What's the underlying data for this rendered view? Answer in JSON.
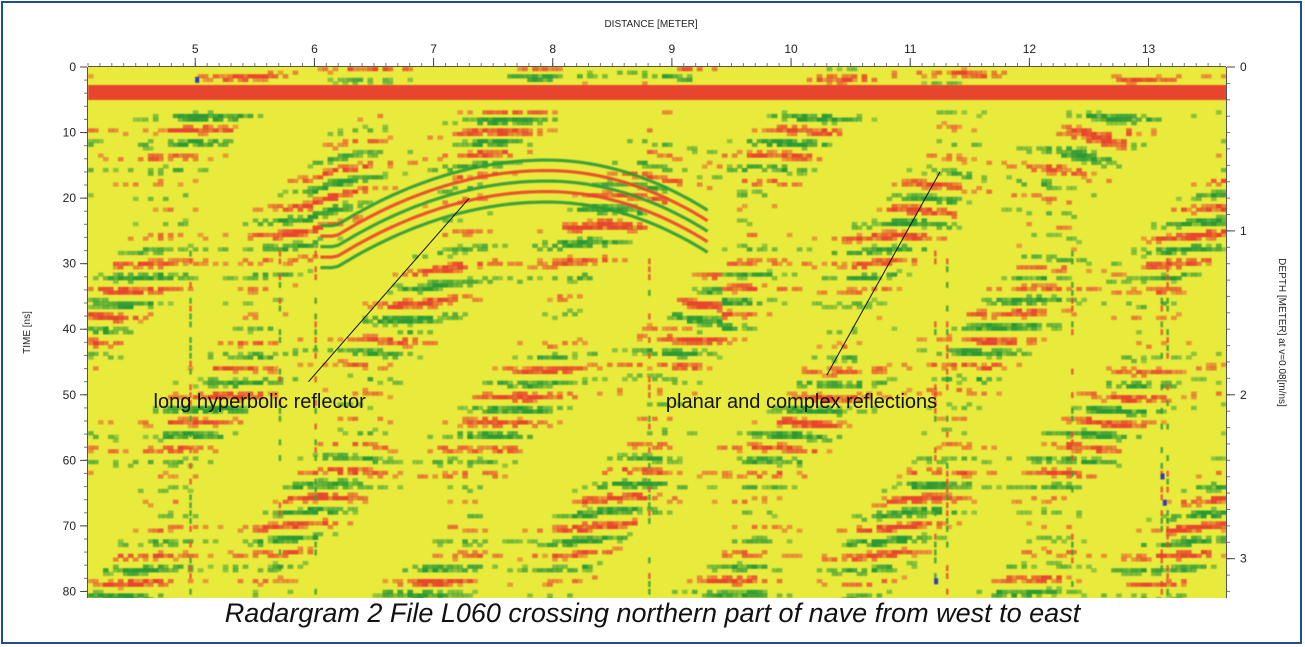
{
  "caption": "Radargram 2 File L060 crossing northern part of nave from west to east",
  "chart_data": {
    "type": "heatmap",
    "subject": "GPR radargram",
    "x_axis": {
      "label": "DISTANCE [METER]",
      "position": "top",
      "range": [
        4.1,
        13.65
      ],
      "ticks": [
        5,
        6,
        7,
        8,
        9,
        10,
        11,
        12,
        13
      ]
    },
    "y_axis_left": {
      "label": "TIME [ns]",
      "range": [
        0,
        81
      ],
      "reversed": true,
      "ticks": [
        0,
        10,
        20,
        30,
        40,
        50,
        60,
        70,
        80
      ]
    },
    "y_axis_right": {
      "label": "DEPTH [METER] at v=0.08[m/ns]",
      "range": [
        0,
        3.24
      ],
      "ticks": [
        0,
        1,
        2,
        3
      ]
    },
    "colormap": {
      "background": "#e8ea3c",
      "positive": "#e8442e",
      "negative": "#2c9a36",
      "extreme": "#2b3fb8"
    },
    "grid": false,
    "annotations": [
      {
        "text": "long hyperbolic reflector",
        "label_x": 4.65,
        "label_t": 52,
        "pointer_from": [
          5.95,
          48
        ],
        "pointer_to": [
          7.3,
          20
        ]
      },
      {
        "text": "planar and complex reflections",
        "label_x": 8.95,
        "label_t": 52,
        "pointer_from": [
          10.3,
          47
        ],
        "pointer_to": [
          11.25,
          16
        ]
      }
    ],
    "features": [
      {
        "name": "direct wave",
        "t": 3.5
      },
      {
        "name": "hyperbolic reflector apex",
        "x": 7.95,
        "t": 15.5
      }
    ]
  }
}
